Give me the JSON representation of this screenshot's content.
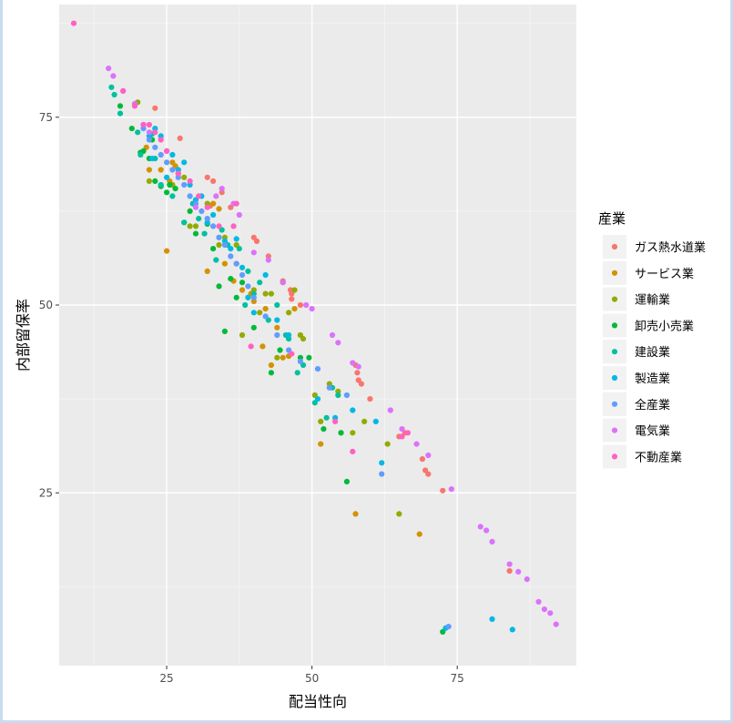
{
  "chart_data": {
    "type": "scatter",
    "xlabel": "配当性向",
    "ylabel": "内部留保率",
    "x_ticks": [
      25,
      50,
      75
    ],
    "y_ticks": [
      25,
      50,
      75
    ],
    "xlim": [
      6.5,
      95.5
    ],
    "ylim": [
      2,
      90
    ],
    "grid": true,
    "legend": {
      "title": "産業",
      "placement": "right",
      "entries": [
        {
          "name": "ガス熱水道業",
          "color": "#F8766D"
        },
        {
          "name": "サービス業",
          "color": "#D39200"
        },
        {
          "name": "運輸業",
          "color": "#93AA00"
        },
        {
          "name": "卸売小売業",
          "color": "#00BA38"
        },
        {
          "name": "建設業",
          "color": "#00C19F"
        },
        {
          "name": "製造業",
          "color": "#00B9E3"
        },
        {
          "name": "全産業",
          "color": "#619CFF"
        },
        {
          "name": "電気業",
          "color": "#DB72FB"
        },
        {
          "name": "不動産業",
          "color": "#FF61C3"
        }
      ]
    },
    "series": [
      {
        "name": "ガス熱水道業",
        "points": [
          [
            23,
            76.2
          ],
          [
            27.3,
            72.2
          ],
          [
            32,
            67
          ],
          [
            33,
            66.5
          ],
          [
            34.5,
            65
          ],
          [
            32.5,
            63.2
          ],
          [
            36,
            63
          ],
          [
            40,
            59
          ],
          [
            40.5,
            58.5
          ],
          [
            42.5,
            56.5
          ],
          [
            45,
            53.2
          ],
          [
            46.3,
            52
          ],
          [
            46.5,
            51.5
          ],
          [
            46.5,
            50.8
          ],
          [
            48,
            50
          ],
          [
            57.5,
            42
          ],
          [
            57.8,
            41
          ],
          [
            58,
            40
          ],
          [
            58.5,
            39.5
          ],
          [
            60,
            37.5
          ],
          [
            65,
            32.5
          ],
          [
            66,
            33
          ],
          [
            69,
            29.5
          ],
          [
            69.5,
            28
          ],
          [
            70,
            27.5
          ],
          [
            72.5,
            25.3
          ],
          [
            84,
            14.6
          ]
        ]
      },
      {
        "name": "サービス業",
        "points": [
          [
            21.5,
            71
          ],
          [
            22,
            68
          ],
          [
            24,
            68
          ],
          [
            25,
            57.2
          ],
          [
            25.5,
            66.5
          ],
          [
            26,
            69
          ],
          [
            26.5,
            68.5
          ],
          [
            27,
            67.5
          ],
          [
            32,
            54.5
          ],
          [
            33,
            63.5
          ],
          [
            34,
            62.8
          ],
          [
            35,
            55.5
          ],
          [
            36.5,
            53.2
          ],
          [
            37,
            55.5
          ],
          [
            38,
            52
          ],
          [
            39.5,
            51.5
          ],
          [
            40,
            50.5
          ],
          [
            41.5,
            44.5
          ],
          [
            42,
            49.5
          ],
          [
            43,
            42
          ],
          [
            44,
            47
          ],
          [
            45,
            43
          ],
          [
            46,
            43.2
          ],
          [
            47,
            49.5
          ],
          [
            51.5,
            31.5
          ],
          [
            55,
            33
          ],
          [
            57.5,
            22.2
          ],
          [
            68.5,
            19.5
          ]
        ]
      },
      {
        "name": "運輸業",
        "points": [
          [
            20,
            77
          ],
          [
            22,
            66.5
          ],
          [
            26,
            66
          ],
          [
            28,
            67
          ],
          [
            29,
            60.5
          ],
          [
            30,
            60.5
          ],
          [
            32,
            63.5
          ],
          [
            34,
            58
          ],
          [
            35,
            59
          ],
          [
            37,
            58
          ],
          [
            38,
            46
          ],
          [
            39,
            51
          ],
          [
            40,
            52
          ],
          [
            41,
            49
          ],
          [
            42,
            51.5
          ],
          [
            43,
            51.5
          ],
          [
            44,
            43
          ],
          [
            45,
            53
          ],
          [
            46,
            49
          ],
          [
            47,
            52
          ],
          [
            48,
            46
          ],
          [
            48.5,
            45.5
          ],
          [
            50.5,
            38
          ],
          [
            51.5,
            34.5
          ],
          [
            53,
            39.5
          ],
          [
            54.5,
            38.5
          ],
          [
            57,
            33
          ],
          [
            59,
            34.5
          ],
          [
            63,
            31.5
          ],
          [
            65,
            22.2
          ]
        ]
      },
      {
        "name": "卸売小売業",
        "points": [
          [
            17,
            76.5
          ],
          [
            19,
            73.5
          ],
          [
            20.5,
            70.3
          ],
          [
            21,
            70.5
          ],
          [
            22,
            69.5
          ],
          [
            22.5,
            72
          ],
          [
            23,
            66.5
          ],
          [
            24,
            65.8
          ],
          [
            25,
            65
          ],
          [
            25.5,
            66
          ],
          [
            26.5,
            65.5
          ],
          [
            28,
            61
          ],
          [
            29,
            62.5
          ],
          [
            30,
            59.5
          ],
          [
            32,
            60.8
          ],
          [
            33,
            57.5
          ],
          [
            34,
            52.5
          ],
          [
            35,
            46.5
          ],
          [
            36,
            53.5
          ],
          [
            37,
            51
          ],
          [
            38,
            53
          ],
          [
            40,
            47
          ],
          [
            43,
            41
          ],
          [
            44.5,
            44
          ],
          [
            48,
            43
          ],
          [
            49.5,
            43
          ],
          [
            52,
            33.5
          ],
          [
            55,
            33
          ],
          [
            56,
            26.5
          ],
          [
            72.5,
            6.5
          ]
        ]
      },
      {
        "name": "建設業",
        "points": [
          [
            15.5,
            79
          ],
          [
            16,
            78
          ],
          [
            17,
            75.5
          ],
          [
            20,
            73
          ],
          [
            20.5,
            70
          ],
          [
            22.5,
            72.8
          ],
          [
            23,
            69.5
          ],
          [
            24,
            66
          ],
          [
            26,
            64.5
          ],
          [
            28,
            61
          ],
          [
            29.5,
            63.5
          ],
          [
            30.5,
            61.5
          ],
          [
            31.5,
            59.5
          ],
          [
            33.5,
            56
          ],
          [
            34.5,
            60
          ],
          [
            35.5,
            58
          ],
          [
            37.5,
            57.5
          ],
          [
            38.5,
            50
          ],
          [
            39,
            54.5
          ],
          [
            40,
            51.5
          ],
          [
            41,
            53
          ],
          [
            42.5,
            48
          ],
          [
            44,
            50
          ],
          [
            45.5,
            46
          ],
          [
            46,
            45.5
          ],
          [
            47.5,
            41
          ],
          [
            48.5,
            42
          ],
          [
            50.5,
            37
          ],
          [
            52.5,
            35
          ],
          [
            53.5,
            39
          ],
          [
            54.5,
            38
          ]
        ]
      },
      {
        "name": "製造業",
        "points": [
          [
            21,
            74
          ],
          [
            22,
            72.5
          ],
          [
            22.5,
            69.5
          ],
          [
            23,
            73.5
          ],
          [
            24,
            72.5
          ],
          [
            25,
            67
          ],
          [
            26,
            70
          ],
          [
            27,
            68
          ],
          [
            28,
            69
          ],
          [
            29,
            66
          ],
          [
            30,
            64
          ],
          [
            31,
            64.5
          ],
          [
            32,
            61
          ],
          [
            33,
            62
          ],
          [
            34,
            59
          ],
          [
            35,
            58.5
          ],
          [
            36,
            57.5
          ],
          [
            37,
            58.8
          ],
          [
            38,
            55
          ],
          [
            39,
            51
          ],
          [
            40,
            49
          ],
          [
            42,
            54
          ],
          [
            44,
            48
          ],
          [
            46,
            46
          ],
          [
            51,
            37.5
          ],
          [
            54,
            35
          ],
          [
            57,
            36
          ],
          [
            61,
            34.5
          ],
          [
            62,
            29
          ],
          [
            73,
            7
          ],
          [
            81,
            8.2
          ],
          [
            84.5,
            6.8
          ]
        ]
      },
      {
        "name": "全産業",
        "points": [
          [
            21,
            73.5
          ],
          [
            22,
            72
          ],
          [
            23,
            71
          ],
          [
            24,
            70
          ],
          [
            25,
            69
          ],
          [
            26,
            68
          ],
          [
            27,
            67
          ],
          [
            28,
            66
          ],
          [
            29,
            64.5
          ],
          [
            30,
            63.5
          ],
          [
            31,
            62.5
          ],
          [
            32,
            61.5
          ],
          [
            33,
            60.5
          ],
          [
            34,
            59
          ],
          [
            35,
            58
          ],
          [
            36,
            56.5
          ],
          [
            37,
            55.5
          ],
          [
            38,
            54
          ],
          [
            39,
            52.5
          ],
          [
            40,
            51
          ],
          [
            42,
            48.5
          ],
          [
            44,
            46
          ],
          [
            46,
            44
          ],
          [
            48,
            42.5
          ],
          [
            51,
            41.5
          ],
          [
            53,
            39
          ],
          [
            56,
            38
          ],
          [
            62,
            27.5
          ],
          [
            73.5,
            7.2
          ]
        ]
      },
      {
        "name": "電気業",
        "points": [
          [
            15,
            81.5
          ],
          [
            15.8,
            80.5
          ],
          [
            17.5,
            78.5
          ],
          [
            19.5,
            76.8
          ],
          [
            22,
            73
          ],
          [
            25,
            70.5
          ],
          [
            30,
            63
          ],
          [
            33.5,
            64.5
          ],
          [
            34.5,
            65.5
          ],
          [
            36.5,
            63.5
          ],
          [
            37.5,
            62
          ],
          [
            40,
            57
          ],
          [
            42.5,
            56
          ],
          [
            45,
            53
          ],
          [
            49,
            50
          ],
          [
            50,
            49.5
          ],
          [
            53.5,
            46
          ],
          [
            54.5,
            45
          ],
          [
            57,
            42.3
          ],
          [
            58,
            41.8
          ],
          [
            63.5,
            36
          ],
          [
            65.5,
            33.5
          ],
          [
            68,
            31.5
          ],
          [
            70,
            30
          ],
          [
            74,
            25.5
          ],
          [
            79,
            20.5
          ],
          [
            80,
            20
          ],
          [
            81,
            18.5
          ],
          [
            84,
            15.5
          ],
          [
            85.5,
            14.5
          ],
          [
            87,
            13.5
          ],
          [
            89,
            10.5
          ],
          [
            90,
            9.5
          ],
          [
            91,
            9
          ],
          [
            92,
            7.5
          ]
        ]
      },
      {
        "name": "不動産業",
        "points": [
          [
            9,
            87.5
          ],
          [
            17.5,
            78.5
          ],
          [
            19.5,
            76.5
          ],
          [
            21,
            74
          ],
          [
            22,
            74
          ],
          [
            23,
            73
          ],
          [
            24,
            72
          ],
          [
            25,
            70.5
          ],
          [
            27,
            67.5
          ],
          [
            29,
            66.5
          ],
          [
            30.5,
            64.5
          ],
          [
            32,
            63
          ],
          [
            34,
            60.5
          ],
          [
            36.5,
            60.5
          ],
          [
            37,
            63.5
          ],
          [
            39.5,
            44.5
          ],
          [
            46.5,
            43.5
          ],
          [
            54,
            34.5
          ],
          [
            57,
            30.5
          ],
          [
            65.5,
            32.5
          ],
          [
            66.5,
            33
          ]
        ]
      }
    ]
  }
}
